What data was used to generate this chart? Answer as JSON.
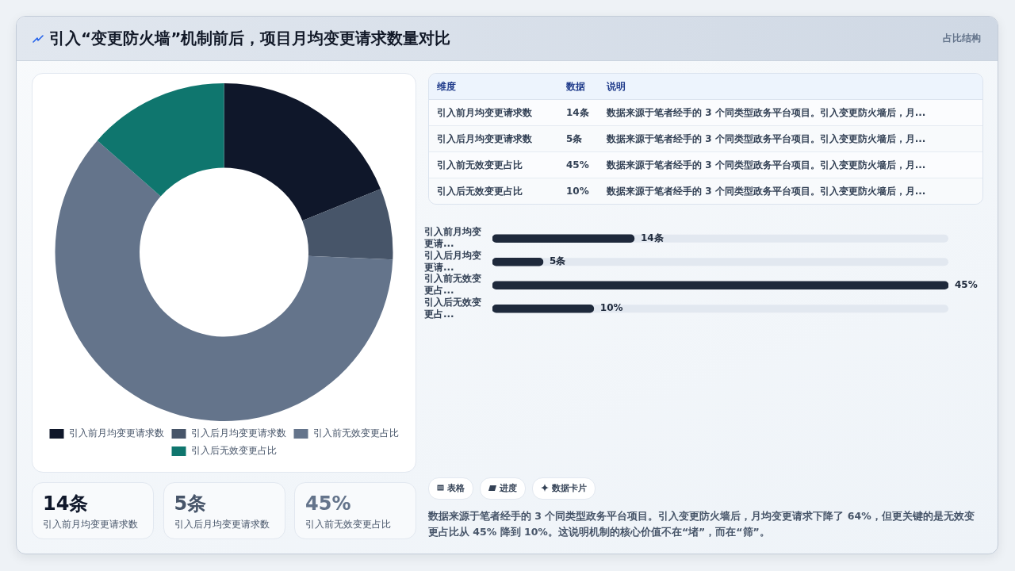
{
  "chart_data": [
    {
      "type": "other",
      "title": "引入“变更防火墙”机制前后，项目月均变更请求数量对比",
      "subtitle": "占比结构"
    },
    {
      "type": "donut",
      "categories": [
        "引入前月均变更请求数",
        "引入后月均变更请求数",
        "引入前无效变更占比",
        "引入后无效变更占比"
      ],
      "values": [
        18.9,
        6.8,
        60.8,
        13.5
      ],
      "colors": [
        "#0f172a",
        "#475569",
        "#64748b",
        "#0f766e"
      ],
      "legend": "bottom"
    },
    {
      "type": "other",
      "categories": [
        "引入前月均变更请求数",
        "引入后月均变更请求数",
        "引入前无效变更占比"
      ],
      "values": [
        14,
        5,
        45
      ],
      "value_labels": [
        "14条",
        "5条",
        "45%"
      ]
    },
    {
      "type": "other",
      "categories": [
        "维度",
        "数据",
        "说明"
      ],
      "cell_labels": [
        [
          "引入前月均变更请求数",
          "14条",
          "数据来源于笔者经手的 3 个同类型政务平台项目。引入变更防火墙后，月..."
        ],
        [
          "引入后月均变更请求数",
          "5条",
          "数据来源于笔者经手的 3 个同类型政务平台项目。引入变更防火墙后，月..."
        ],
        [
          "引入前无效变更占比",
          "45%",
          "数据来源于笔者经手的 3 个同类型政务平台项目。引入变更防火墙后，月..."
        ],
        [
          "引入后无效变更占比",
          "10%",
          "数据来源于笔者经手的 3 个同类型政务平台项目。引入变更防火墙后，月..."
        ]
      ]
    },
    {
      "type": "bar",
      "orientation": "horizontal",
      "categories": [
        "引入前月均变更请...",
        "引入后月均变更请...",
        "引入前无效变更占...",
        "引入后无效变更占..."
      ],
      "values": [
        14,
        5,
        45,
        10
      ],
      "value_labels": [
        "14条",
        "5条",
        "45%",
        "10%"
      ],
      "color": "#1e293b"
    },
    {
      "type": "other",
      "categories": [
        "表格",
        "进度",
        "数据卡片"
      ],
      "annotations": [
        "数据来源于笔者经手的 3 个同类型政务平台项目。引入变更防火墙后，月均变更请求下降了 64%，但更关键的是无效变更占比从 45% 降到 10%。这说明机制的核心价值不在“堵”，而在“筛”。"
      ]
    }
  ]
}
